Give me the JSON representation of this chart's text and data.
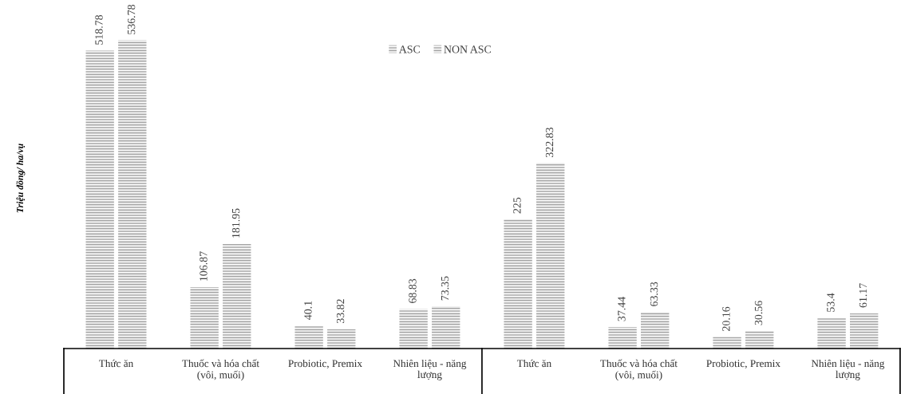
{
  "chart_data": {
    "type": "bar",
    "ylabel": "Triệu đồng/ ha/vụ",
    "categories": [
      "Thức ăn",
      "Thuốc và hóa chất\n(vôi, muối)",
      "Probiotic, Premix",
      "Nhiên liệu - năng\nlượng",
      "Thức ăn",
      "Thuốc và hóa chất\n(vôi, muối)",
      "Probiotic, Premix",
      "Nhiên liệu - năng\nlượng"
    ],
    "series": [
      {
        "name": "ASC",
        "color": "#a6a6a6",
        "values": [
          518.78,
          106.87,
          40.1,
          68.83,
          225,
          37.44,
          20.16,
          53.4
        ]
      },
      {
        "name": "NON ASC",
        "color": "#a6a6a6",
        "values": [
          536.78,
          181.95,
          33.82,
          73.35,
          322.83,
          63.33,
          30.56,
          61.17
        ]
      }
    ],
    "data_labels": true,
    "legend": "top",
    "grid": false
  }
}
